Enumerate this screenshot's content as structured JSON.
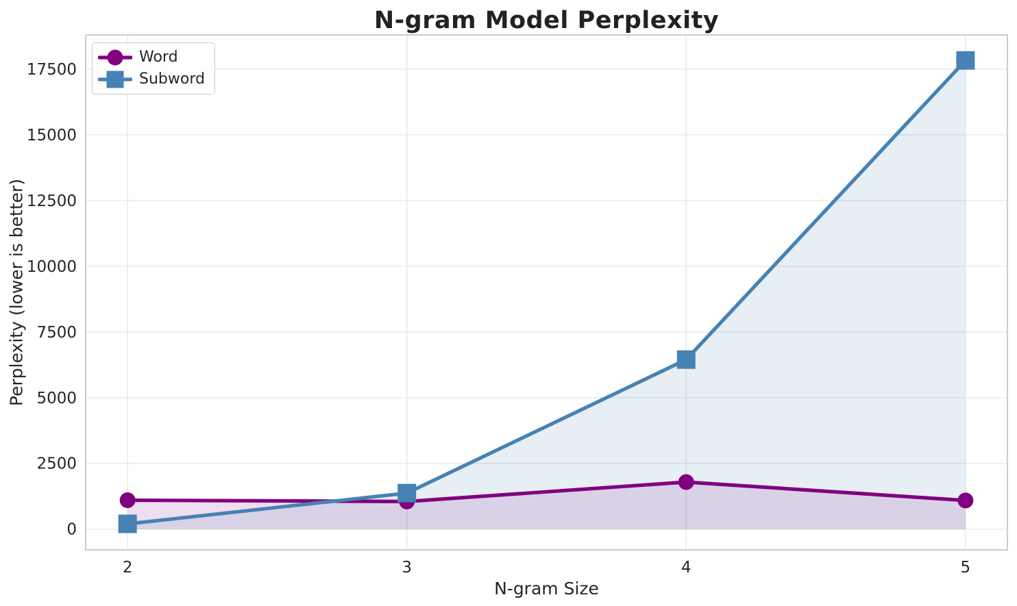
{
  "chart_data": {
    "type": "line",
    "title": "N-gram Model Perplexity",
    "xlabel": "N-gram Size",
    "ylabel": "Perplexity (lower is better)",
    "x": [
      2,
      3,
      4,
      5
    ],
    "series": [
      {
        "name": "Word",
        "marker": "circle",
        "color": "#800080",
        "fill_opacity": 0.13,
        "values": [
          1100,
          1050,
          1790,
          1090
        ]
      },
      {
        "name": "Subword",
        "marker": "square",
        "color": "#4682b4",
        "fill_opacity": 0.13,
        "values": [
          200,
          1370,
          6450,
          17830
        ]
      }
    ],
    "xticks": [
      2,
      3,
      4,
      5
    ],
    "yticks": [
      0,
      2500,
      5000,
      7500,
      10000,
      12500,
      15000,
      17500
    ],
    "xlim": [
      1.85,
      5.15
    ],
    "ylim": [
      -789,
      18801
    ],
    "grid": true,
    "area_fill": true,
    "fill_baseline": 0,
    "legend_position": "upper left"
  },
  "colors": {
    "grid": "#e9e9e9",
    "spine": "#cccccc",
    "tick_text": "#262626",
    "title_text": "#222222",
    "background": "#ffffff"
  }
}
